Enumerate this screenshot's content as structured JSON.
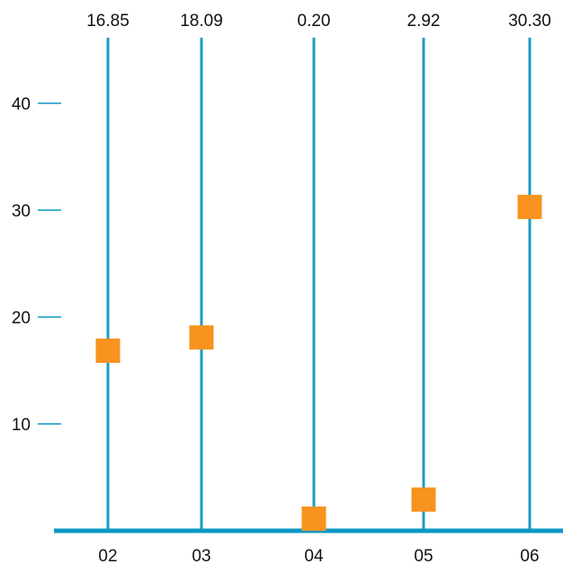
{
  "chart_data": {
    "type": "scatter",
    "categories": [
      "02",
      "03",
      "04",
      "05",
      "06"
    ],
    "values": [
      16.85,
      18.09,
      0.2,
      2.92,
      30.3
    ],
    "value_labels": [
      "16.85",
      "18.09",
      "0.20",
      "2.92",
      "30.30"
    ],
    "yticks": [
      10,
      20,
      30,
      40
    ],
    "ytick_labels": [
      "10",
      "20",
      "30",
      "40"
    ],
    "ylim": [
      0,
      50
    ],
    "title": "",
    "xlabel": "",
    "ylabel": "",
    "grid": false,
    "colors": {
      "stem": "#1b9cc4",
      "axis": "#0b97c4",
      "marker": "#f7931e"
    }
  }
}
